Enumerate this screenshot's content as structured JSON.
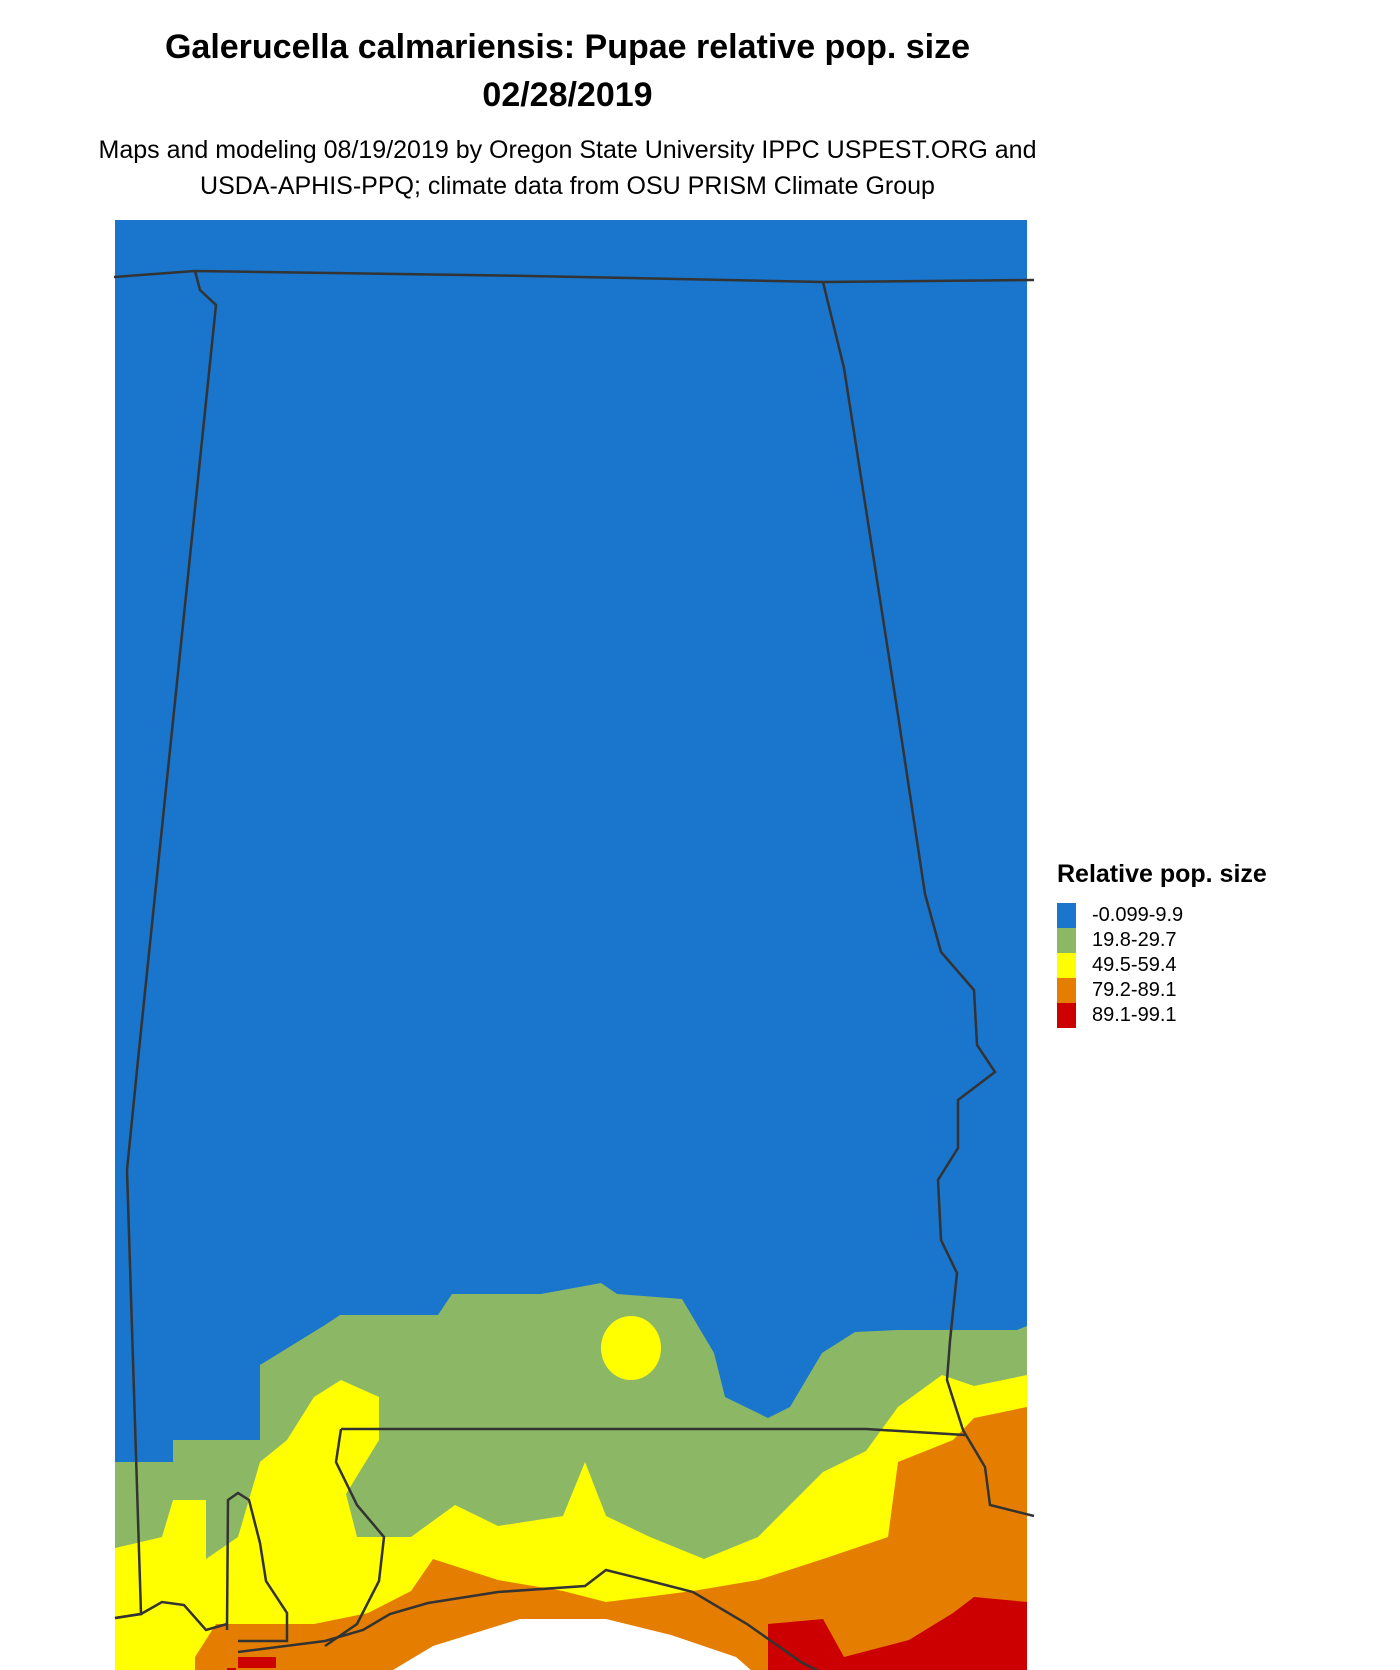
{
  "title_line1": "Galerucella calmariensis: Pupae relative pop. size",
  "title_line2": "02/28/2019",
  "subtitle_line1": "Maps and modeling 08/19/2019 by Oregon State University IPPC USPEST.ORG and",
  "subtitle_line2": "USDA-APHIS-PPQ; climate data from OSU PRISM Climate Group",
  "legend": {
    "title": "Relative pop. size",
    "items": [
      {
        "label": "-0.099-9.9",
        "color": "#1a75cc"
      },
      {
        "label": "19.8-29.7",
        "color": "#8cb866"
      },
      {
        "label": "49.5-59.4",
        "color": "#ffff00"
      },
      {
        "label": "79.2-89.1",
        "color": "#e57e00"
      },
      {
        "label": "89.1-99.1",
        "color": "#cc0000"
      }
    ]
  },
  "colors": {
    "border": "#333333",
    "water": "#ffffff"
  }
}
